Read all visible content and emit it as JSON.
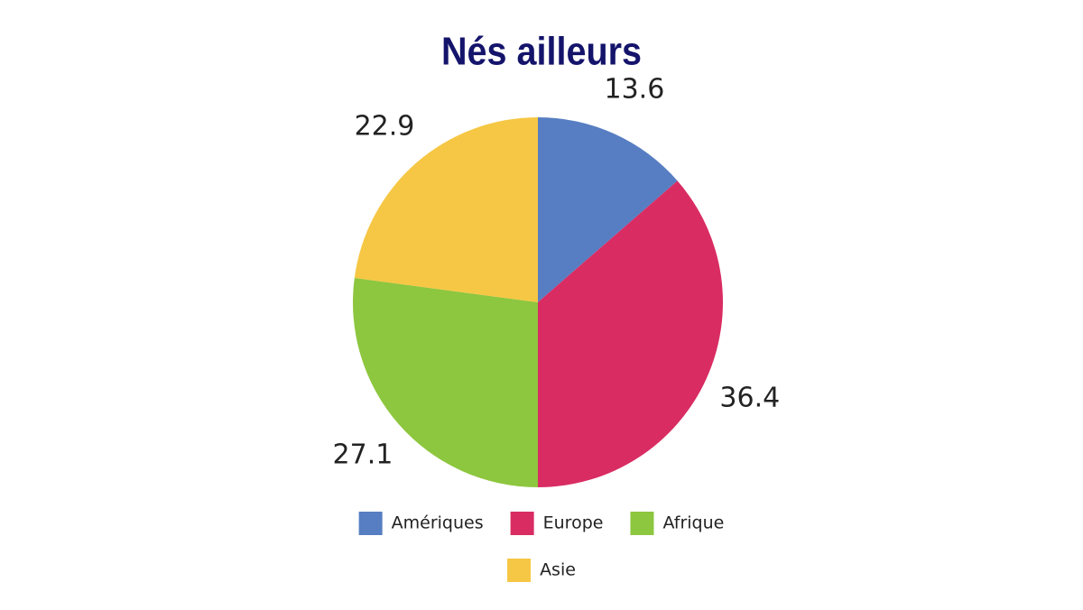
{
  "chart_data": {
    "type": "pie",
    "title": "Nés ailleurs",
    "categories": [
      "Amériques",
      "Europe",
      "Afrique",
      "Asie"
    ],
    "values": [
      13.6,
      36.4,
      27.1,
      22.9
    ],
    "colors": [
      "#577ec2",
      "#d92c63",
      "#8dc63f",
      "#f6c744"
    ],
    "legend": "bottom"
  }
}
